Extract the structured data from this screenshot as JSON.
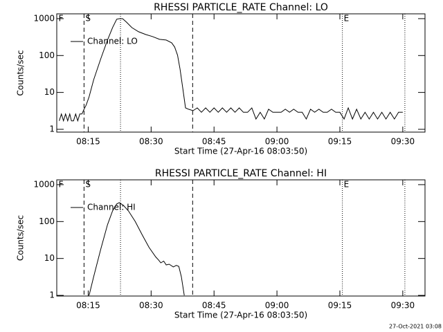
{
  "chart_data": [
    {
      "type": "line",
      "title": "RHESSI PARTICLE_RATE Channel: LO",
      "xlabel": "Start Time (27-Apr-16 08:03:50)",
      "ylabel": "Counts/sec",
      "log_y": true,
      "xlim": [
        487.5,
        575.3
      ],
      "ylim": [
        0.84,
        1350
      ],
      "xticks": [
        {
          "value": 495,
          "label": "08:15"
        },
        {
          "value": 510,
          "label": "08:30"
        },
        {
          "value": 525,
          "label": "08:45"
        },
        {
          "value": 540,
          "label": "09:00"
        },
        {
          "value": 555,
          "label": "09:15"
        },
        {
          "value": 570,
          "label": "09:30"
        }
      ],
      "yticks": [
        1,
        10,
        100,
        1000
      ],
      "vlines": [
        {
          "x": 494.0,
          "style": "dashed"
        },
        {
          "x": 502.7,
          "style": "dotted"
        },
        {
          "x": 519.9,
          "style": "dashed"
        },
        {
          "x": 555.6,
          "style": "dotted"
        },
        {
          "x": 570.5,
          "style": "dotted"
        }
      ],
      "markers": [
        {
          "x": 487.6,
          "text": "F"
        },
        {
          "x": 494.0,
          "text": "S"
        },
        {
          "x": 555.6,
          "text": "E"
        }
      ],
      "x": [
        488.1,
        488.6,
        489.1,
        489.6,
        490.1,
        490.6,
        491.0,
        491.5,
        492.0,
        492.5,
        493.0,
        493.5,
        494.0,
        494.5,
        495.2,
        496.3,
        498.0,
        499.6,
        500.8,
        501.8,
        502.4,
        503.2,
        504.1,
        505.4,
        507.0,
        508.7,
        510.3,
        512.0,
        513.6,
        514.9,
        515.6,
        516.3,
        516.9,
        517.6,
        518.2,
        518.9,
        520,
        521,
        522,
        523,
        524,
        525,
        526,
        527,
        528,
        529,
        530,
        531,
        532,
        533,
        534,
        535,
        536,
        537,
        538,
        539,
        540,
        541,
        542,
        543,
        544,
        545,
        546,
        547,
        548,
        549,
        550,
        551,
        552,
        553,
        554,
        555,
        556,
        557,
        558,
        559,
        560,
        561,
        562,
        563,
        564,
        565,
        566,
        567,
        568,
        569,
        570
      ],
      "series": [
        {
          "name": "Channel: LO",
          "color": "#000000",
          "values": [
            1.7,
            2.6,
            1.7,
            2.6,
            1.7,
            2.6,
            1.7,
            1.7,
            2.6,
            1.7,
            2.6,
            2.6,
            3.5,
            4.5,
            7.6,
            22,
            82,
            263,
            573,
            962,
            1000,
            1000,
            809,
            573,
            442,
            372,
            327,
            275,
            263,
            221,
            171,
            102,
            43,
            11.7,
            3.8,
            3.5,
            3.2,
            3.8,
            2.9,
            3.8,
            2.9,
            3.8,
            2.9,
            3.8,
            2.9,
            3.8,
            2.9,
            3.8,
            2.9,
            2.9,
            3.8,
            1.9,
            2.9,
            1.9,
            3.5,
            2.9,
            2.9,
            2.9,
            3.5,
            2.9,
            3.5,
            2.9,
            2.9,
            1.9,
            3.5,
            2.9,
            3.5,
            2.9,
            2.9,
            3.5,
            2.9,
            2.9,
            1.9,
            3.8,
            1.9,
            3.5,
            1.9,
            2.9,
            1.9,
            2.9,
            1.9,
            2.9,
            1.9,
            2.9,
            1.9,
            2.9,
            2.9
          ]
        }
      ]
    },
    {
      "type": "line",
      "title": "RHESSI PARTICLE_RATE Channel: HI",
      "xlabel": "Start Time (27-Apr-16 08:03:50)",
      "ylabel": "Counts/sec",
      "log_y": true,
      "xlim": [
        487.5,
        575.3
      ],
      "ylim": [
        0.96,
        1350
      ],
      "xticks": [
        {
          "value": 495,
          "label": "08:15"
        },
        {
          "value": 510,
          "label": "08:30"
        },
        {
          "value": 525,
          "label": "08:45"
        },
        {
          "value": 540,
          "label": "09:00"
        },
        {
          "value": 555,
          "label": "09:15"
        },
        {
          "value": 570,
          "label": "09:30"
        }
      ],
      "yticks": [
        1,
        10,
        100,
        1000
      ],
      "vlines": [
        {
          "x": 494.0,
          "style": "dashed"
        },
        {
          "x": 502.7,
          "style": "dotted"
        },
        {
          "x": 519.9,
          "style": "dashed"
        },
        {
          "x": 555.6,
          "style": "dotted"
        },
        {
          "x": 570.5,
          "style": "dotted"
        }
      ],
      "markers": [
        {
          "x": 487.6,
          "text": "F"
        },
        {
          "x": 494.0,
          "text": "S"
        },
        {
          "x": 555.6,
          "text": "E"
        }
      ],
      "x": [
        495.2,
        496.3,
        498.0,
        499.6,
        500.8,
        501.8,
        502.4,
        503.4,
        504.6,
        506.2,
        507.9,
        509.5,
        511.1,
        511.8,
        512.3,
        513.0,
        513.6,
        514.3,
        515.3,
        516.0,
        516.6,
        517.2,
        517.9
      ],
      "series": [
        {
          "name": "Channel: HI",
          "color": "#000000",
          "values": [
            1,
            3.2,
            18,
            82,
            194,
            300,
            327,
            275,
            194,
            101,
            43,
            20,
            11,
            9,
            7.6,
            8.5,
            6.7,
            7,
            5.9,
            6.5,
            6.1,
            3.2,
            1
          ]
        }
      ]
    }
  ],
  "footer": "27-Oct-2021 03:08"
}
